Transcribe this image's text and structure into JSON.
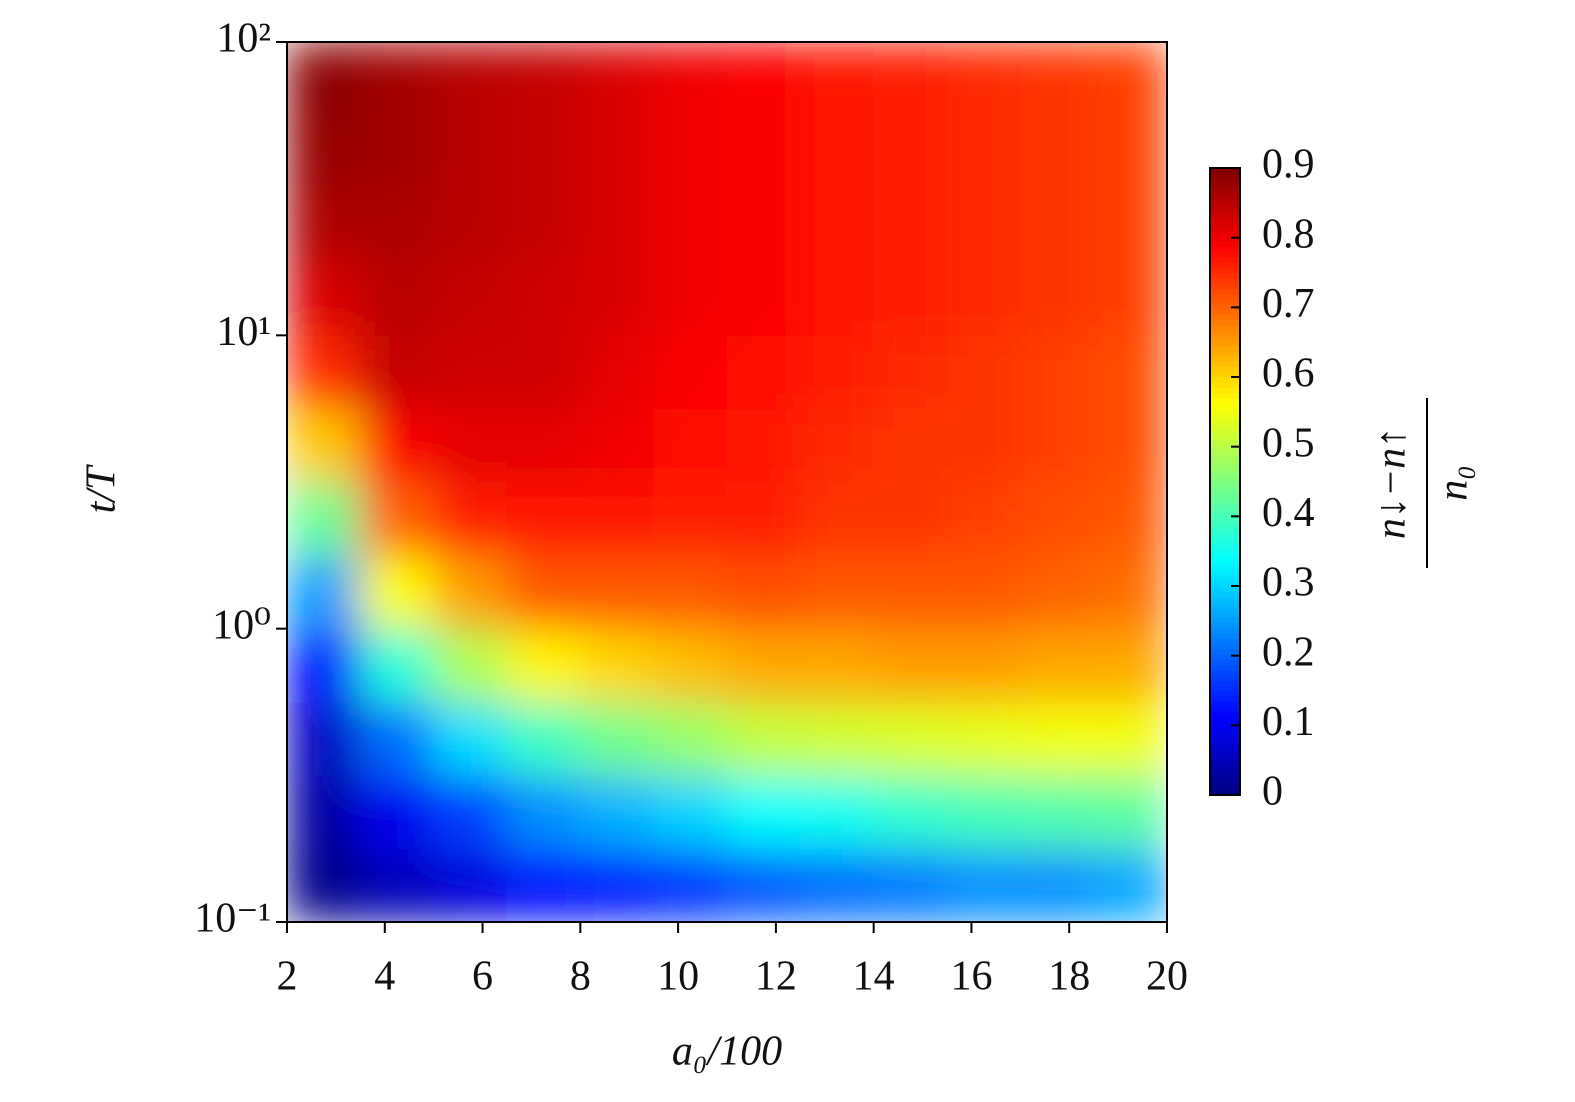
{
  "chart_data": {
    "type": "heatmap",
    "x_label": "a₀/100",
    "y_label": "t/T",
    "colorbar_label": {
      "numerator": "n↓−n↑",
      "denominator": "n₀"
    },
    "colormap": "jet",
    "x_edges": [
      2,
      3.5,
      5,
      6.5,
      8,
      9.5,
      11,
      12.5,
      14,
      15.5,
      17,
      18.5,
      20
    ],
    "y_edges": [
      0.1,
      0.178,
      0.316,
      0.562,
      1,
      1.778,
      3.162,
      5.623,
      10,
      17.78,
      31.62,
      56.23,
      100
    ],
    "z": [
      [
        0.01,
        0.05,
        0.08,
        0.12,
        0.14,
        0.16,
        0.19,
        0.21,
        0.22,
        0.24,
        0.24,
        0.26
      ],
      [
        0.03,
        0.1,
        0.17,
        0.24,
        0.27,
        0.3,
        0.34,
        0.35,
        0.38,
        0.4,
        0.41,
        0.42
      ],
      [
        0.06,
        0.21,
        0.31,
        0.39,
        0.44,
        0.47,
        0.51,
        0.52,
        0.53,
        0.54,
        0.55,
        0.55
      ],
      [
        0.12,
        0.37,
        0.49,
        0.57,
        0.6,
        0.62,
        0.64,
        0.64,
        0.65,
        0.65,
        0.64,
        0.64
      ],
      [
        0.25,
        0.56,
        0.65,
        0.71,
        0.71,
        0.71,
        0.72,
        0.71,
        0.71,
        0.71,
        0.7,
        0.69
      ],
      [
        0.43,
        0.7,
        0.76,
        0.77,
        0.77,
        0.76,
        0.76,
        0.74,
        0.74,
        0.73,
        0.72,
        0.71
      ],
      [
        0.61,
        0.79,
        0.81,
        0.81,
        0.8,
        0.78,
        0.77,
        0.75,
        0.74,
        0.74,
        0.73,
        0.72
      ],
      [
        0.75,
        0.84,
        0.83,
        0.83,
        0.81,
        0.79,
        0.78,
        0.76,
        0.75,
        0.74,
        0.73,
        0.72
      ],
      [
        0.82,
        0.85,
        0.84,
        0.83,
        0.82,
        0.8,
        0.79,
        0.77,
        0.76,
        0.75,
        0.74,
        0.73
      ],
      [
        0.86,
        0.86,
        0.85,
        0.84,
        0.82,
        0.8,
        0.79,
        0.77,
        0.76,
        0.75,
        0.74,
        0.73
      ],
      [
        0.88,
        0.87,
        0.85,
        0.84,
        0.82,
        0.8,
        0.79,
        0.77,
        0.76,
        0.75,
        0.74,
        0.73
      ],
      [
        0.89,
        0.87,
        0.85,
        0.84,
        0.82,
        0.8,
        0.79,
        0.77,
        0.76,
        0.75,
        0.74,
        0.73
      ]
    ],
    "xlim": [
      2,
      20
    ],
    "xticks": [
      2,
      4,
      6,
      8,
      10,
      12,
      14,
      16,
      18,
      20
    ],
    "ylim": [
      0.1,
      100
    ],
    "y_log": true,
    "yticks": [
      {
        "value": 0.1,
        "label": "10⁻¹"
      },
      {
        "value": 1,
        "label": "10⁰"
      },
      {
        "value": 10,
        "label": "10¹"
      },
      {
        "value": 100,
        "label": "10²"
      }
    ],
    "clim": [
      0,
      0.9
    ],
    "colorbar_ticks": [
      0,
      0.1,
      0.2,
      0.3,
      0.4,
      0.5,
      0.6,
      0.7,
      0.8,
      0.9
    ]
  }
}
